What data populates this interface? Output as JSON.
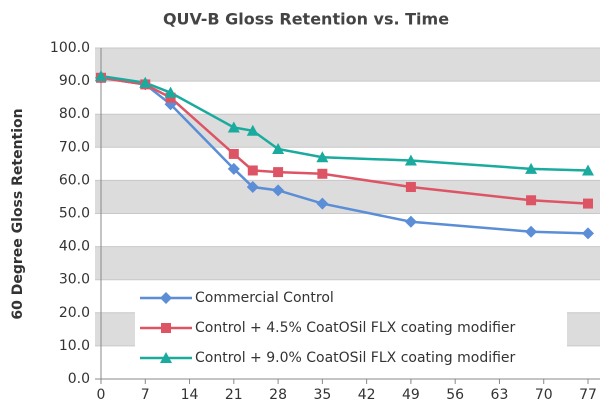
{
  "chart_data": {
    "type": "line",
    "title": "QUV-B Gloss Retention vs. Time",
    "y_label": "60 Degree Gloss Retention",
    "x": [
      0,
      7,
      11,
      21,
      24,
      28,
      35,
      49,
      68,
      77
    ],
    "series": [
      {
        "name": "Commercial Control",
        "color": "#5b8ed6",
        "marker": "diamond",
        "values": [
          91,
          89,
          83,
          63.5,
          58,
          57,
          53,
          47.5,
          44.5,
          44
        ]
      },
      {
        "name": "Control + 4.5% CoatOSil FLX coating modifier",
        "color": "#dd5565",
        "marker": "square",
        "values": [
          91,
          89,
          85,
          68,
          63,
          62.5,
          62,
          58,
          54,
          53
        ]
      },
      {
        "name": "Control + 9.0% CoatOSil FLX coating modifier",
        "color": "#1aab9e",
        "marker": "triangle",
        "values": [
          91.5,
          89.5,
          86.5,
          76,
          75,
          69.5,
          67,
          66,
          63.5,
          63
        ]
      }
    ],
    "xlim": [
      0,
      77
    ],
    "xticks": [
      0,
      7,
      14,
      21,
      28,
      35,
      42,
      49,
      56,
      63,
      70,
      77
    ],
    "ylim": [
      0,
      100
    ],
    "yticks": [
      {
        "value": 0,
        "label": "0.0"
      },
      {
        "value": 10,
        "label": "10.0"
      },
      {
        "value": 20,
        "label": "20.0"
      },
      {
        "value": 30,
        "label": "30.0"
      },
      {
        "value": 40,
        "label": "40.0"
      },
      {
        "value": 50,
        "label": "50.0"
      },
      {
        "value": 60,
        "label": "60.0"
      },
      {
        "value": 70,
        "label": "70.0"
      },
      {
        "value": 80,
        "label": "80.0"
      },
      {
        "value": 90,
        "label": "90.0"
      },
      {
        "value": 100,
        "label": "100.0"
      }
    ],
    "grid": true,
    "legend": "lower left"
  }
}
